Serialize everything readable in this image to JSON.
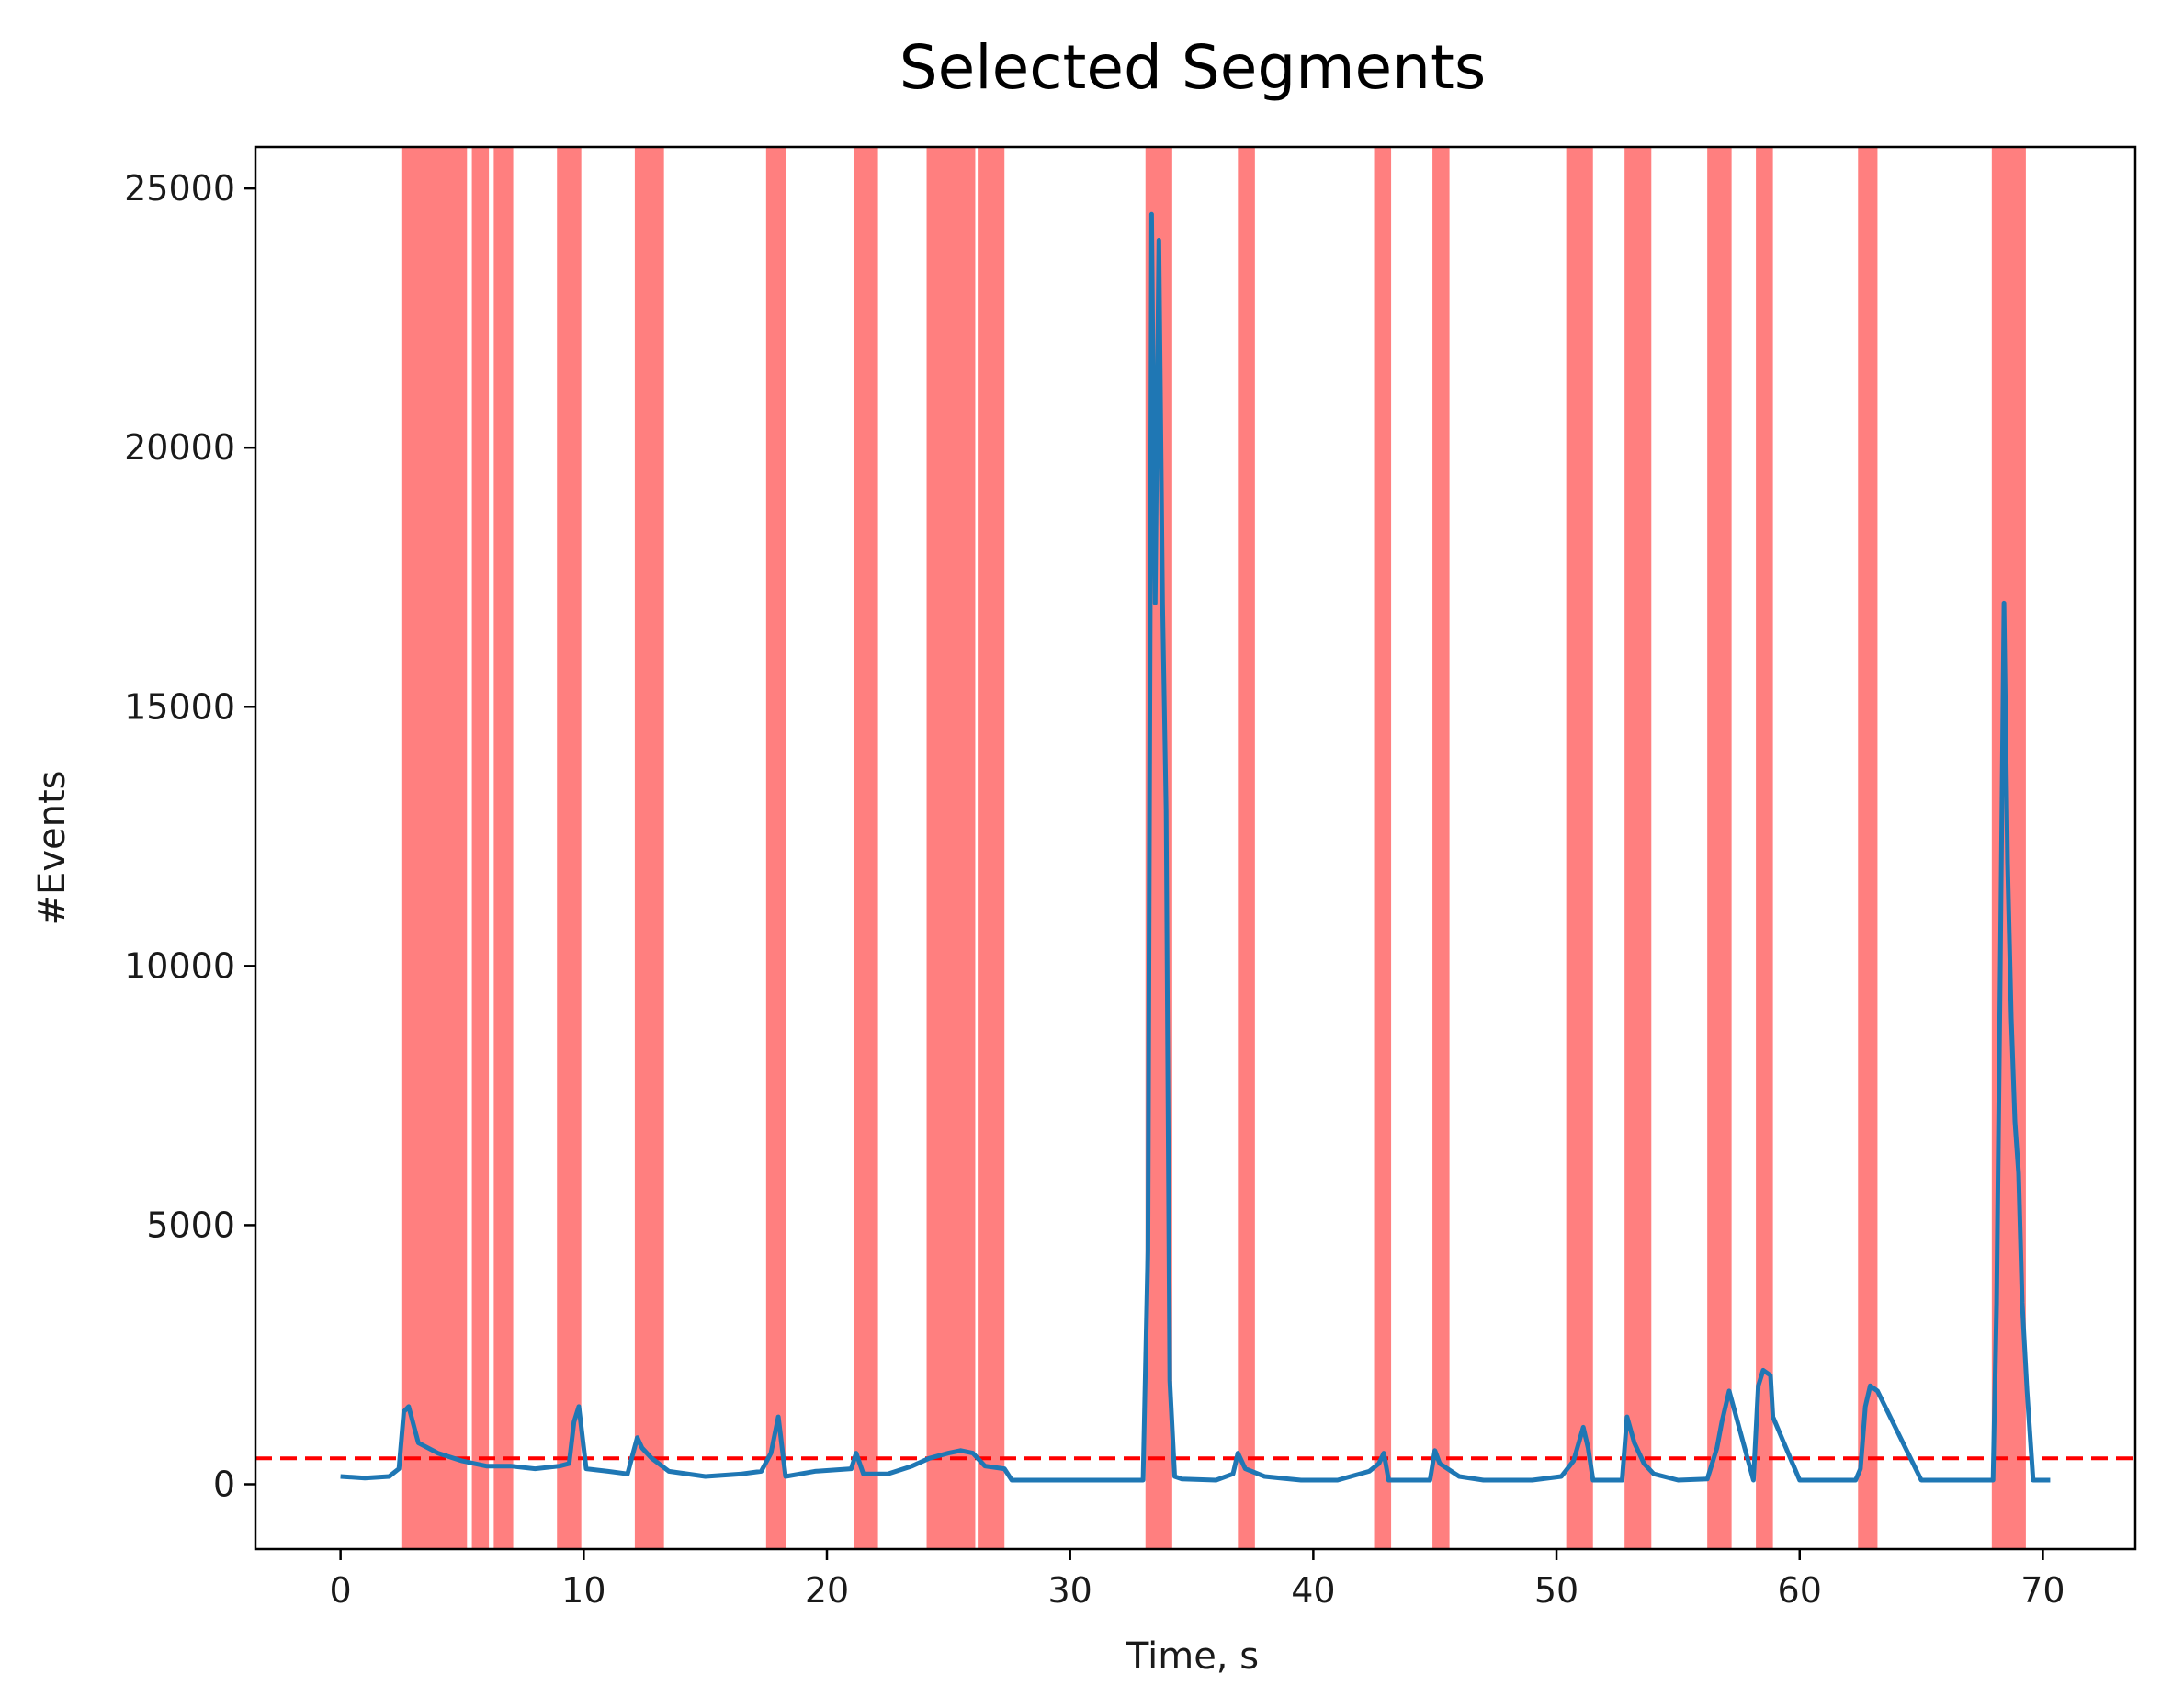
{
  "chart_data": {
    "type": "line",
    "title": "Selected Segments",
    "xlabel": "Time, s",
    "ylabel": "#Events",
    "xlim": [
      -3.5,
      73.8
    ],
    "ylim": [
      -1250,
      25800
    ],
    "xticks": [
      0,
      10,
      20,
      30,
      40,
      50,
      60,
      70
    ],
    "yticks": [
      0,
      5000,
      10000,
      15000,
      20000,
      25000
    ],
    "grid": false,
    "threshold": {
      "value": 500,
      "color": "#ff0000",
      "style": "dashed"
    },
    "colors": {
      "line": "#1f77b4",
      "span": "#ff0000",
      "threshold": "#ff0000"
    },
    "selected_segments": [
      [
        2.5,
        5.2
      ],
      [
        5.4,
        6.1
      ],
      [
        6.3,
        7.1
      ],
      [
        8.9,
        9.9
      ],
      [
        12.1,
        13.3
      ],
      [
        17.5,
        18.3
      ],
      [
        21.1,
        22.1
      ],
      [
        24.1,
        26.1
      ],
      [
        26.2,
        27.3
      ],
      [
        33.1,
        34.2
      ],
      [
        36.9,
        37.6
      ],
      [
        42.5,
        43.2
      ],
      [
        44.9,
        45.6
      ],
      [
        50.4,
        51.5
      ],
      [
        52.8,
        53.9
      ],
      [
        56.2,
        57.2
      ],
      [
        58.2,
        58.9
      ],
      [
        62.4,
        63.2
      ],
      [
        67.9,
        69.3
      ]
    ],
    "series": [
      {
        "x": [
          0,
          1,
          2,
          2.4,
          2.6,
          2.8,
          3.2,
          4,
          5,
          6,
          7,
          8,
          9,
          9.4,
          9.6,
          9.8,
          10.1,
          11,
          11.8,
          12.2,
          12.4,
          12.8,
          13.5,
          15,
          16.5,
          17.3,
          17.7,
          18,
          18.3,
          19.5,
          21,
          21.2,
          21.5,
          22.5,
          23.5,
          24.2,
          25,
          25.5,
          26,
          26.5,
          27.3,
          27.6,
          30,
          33,
          33.2,
          33.35,
          33.5,
          33.65,
          33.8,
          33.95,
          34.1,
          34.3,
          34.6,
          36,
          36.7,
          36.9,
          37.2,
          38,
          39.5,
          41,
          42.3,
          42.7,
          42.9,
          43.1,
          44.8,
          45,
          45.2,
          46,
          47,
          49,
          50.2,
          50.7,
          51.1,
          51.3,
          51.5,
          52.7,
          52.9,
          53.2,
          53.6,
          54,
          55,
          56.2,
          56.6,
          56.8,
          57.1,
          58.1,
          58.3,
          58.5,
          58.8,
          58.9,
          60,
          62.3,
          62.5,
          62.7,
          62.9,
          63.2,
          65,
          67.8,
          67.95,
          68.1,
          68.25,
          68.4,
          68.55,
          68.7,
          68.85,
          69,
          69.15,
          69.35,
          69.6,
          70.3
        ],
        "values": [
          150,
          120,
          150,
          300,
          1400,
          1500,
          800,
          600,
          450,
          350,
          350,
          300,
          350,
          400,
          1200,
          1500,
          300,
          250,
          200,
          900,
          700,
          500,
          250,
          150,
          200,
          250,
          600,
          1300,
          150,
          250,
          300,
          600,
          200,
          200,
          350,
          500,
          600,
          650,
          600,
          350,
          300,
          80,
          80,
          80,
          4500,
          24500,
          17000,
          24000,
          17000,
          13000,
          2000,
          150,
          100,
          80,
          200,
          600,
          300,
          150,
          80,
          80,
          250,
          400,
          600,
          80,
          80,
          650,
          400,
          150,
          80,
          80,
          150,
          450,
          1100,
          700,
          80,
          80,
          1300,
          800,
          400,
          200,
          80,
          100,
          700,
          1200,
          1800,
          80,
          1900,
          2200,
          2100,
          1300,
          80,
          80,
          300,
          1500,
          1900,
          1800,
          80,
          80,
          80,
          3500,
          10000,
          17000,
          12000,
          9000,
          7000,
          6000,
          3500,
          1800,
          80,
          80
        ]
      }
    ]
  }
}
